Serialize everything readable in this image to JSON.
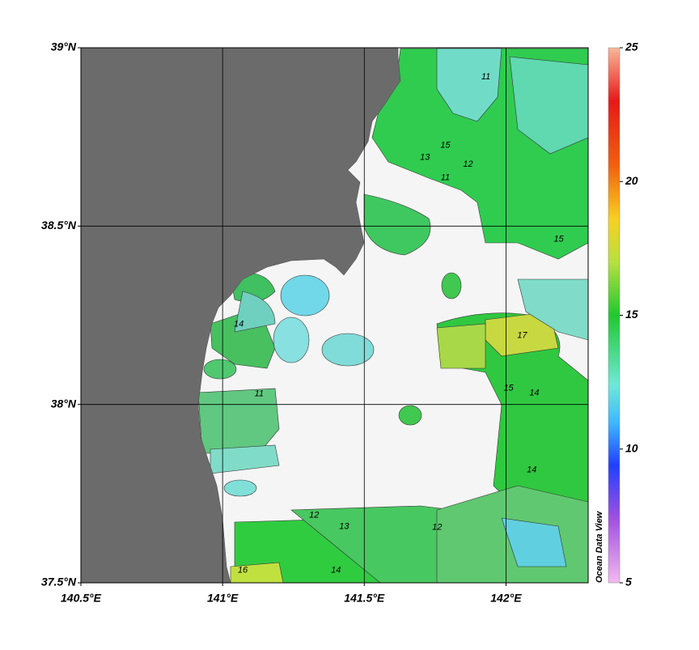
{
  "chart_data": {
    "type": "map",
    "xlim": [
      140.5,
      142.29
    ],
    "ylim": [
      37.5,
      39
    ],
    "xticks": [
      {
        "value": 140.5,
        "label": "140.5°E"
      },
      {
        "value": 141,
        "label": "141°E"
      },
      {
        "value": 141.5,
        "label": "141.5°E"
      },
      {
        "value": 142,
        "label": "142°E"
      }
    ],
    "yticks": [
      {
        "value": 37.5,
        "label": "37.5°N"
      },
      {
        "value": 38,
        "label": "38°N"
      },
      {
        "value": 38.5,
        "label": "38.5°N"
      },
      {
        "value": 39,
        "label": "39°N"
      }
    ],
    "grid": true,
    "colorbar": {
      "lim": [
        5,
        25
      ],
      "ticks": [
        5,
        10,
        15,
        20,
        25
      ]
    },
    "watermark": "Ocean Data View",
    "contour_labels": [
      {
        "lon": 141.057,
        "lat": 38.225,
        "value": 14
      },
      {
        "lon": 142.057,
        "lat": 38.193,
        "value": 17
      },
      {
        "lon": 141.786,
        "lat": 38.726,
        "value": 15
      },
      {
        "lon": 141.714,
        "lat": 38.692,
        "value": 13
      },
      {
        "lon": 141.786,
        "lat": 38.635,
        "value": 11
      },
      {
        "lon": 141.866,
        "lat": 38.673,
        "value": 12
      },
      {
        "lon": 142.186,
        "lat": 38.463,
        "value": 15
      },
      {
        "lon": 142.1,
        "lat": 38.032,
        "value": 14
      },
      {
        "lon": 142.009,
        "lat": 38.045,
        "value": 15
      },
      {
        "lon": 141.129,
        "lat": 38.03,
        "value": 11
      },
      {
        "lon": 141.323,
        "lat": 37.689,
        "value": 12
      },
      {
        "lon": 141.429,
        "lat": 37.657,
        "value": 13
      },
      {
        "lon": 141.071,
        "lat": 37.535,
        "value": 16
      },
      {
        "lon": 141.4,
        "lat": 37.535,
        "value": 14
      },
      {
        "lon": 141.757,
        "lat": 37.655,
        "value": 12
      },
      {
        "lon": 142.091,
        "lat": 37.816,
        "value": 14
      },
      {
        "lon": 141.929,
        "lat": 38.918,
        "value": 11
      }
    ]
  }
}
